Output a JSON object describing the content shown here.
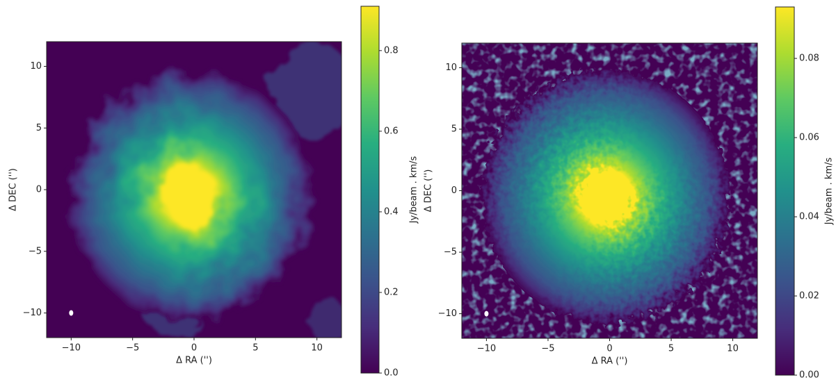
{
  "chart_data": [
    {
      "type": "image",
      "colormap": "viridis",
      "xlabel": "Δ RA ('')",
      "ylabel": "Δ DEC ('')",
      "xlim": [
        -12,
        12
      ],
      "ylim": [
        -12,
        12
      ],
      "xticks": [
        {
          "value": -10,
          "label": "−10"
        },
        {
          "value": -5,
          "label": "−5"
        },
        0,
        5,
        10
      ],
      "yticks": [
        {
          "value": -10,
          "label": "−10"
        },
        {
          "value": -5,
          "label": "−5"
        },
        0,
        5,
        10
      ],
      "beam": [
        -10,
        -10
      ],
      "colorbar": {
        "label": "Jy/beam . km/s",
        "lim": [
          0,
          0.91
        ],
        "ticks": [
          {
            "value": 0,
            "label": "0.0"
          },
          0.2,
          0.4,
          0.6,
          0.8
        ]
      }
    },
    {
      "type": "image",
      "colormap": "viridis",
      "xlabel": "Δ RA ('')",
      "ylabel": "Δ DEC ('')",
      "xlim": [
        -12,
        12
      ],
      "ylim": [
        -12,
        12
      ],
      "xticks": [
        {
          "value": -10,
          "label": "−10"
        },
        {
          "value": -5,
          "label": "−5"
        },
        0,
        5,
        10
      ],
      "yticks": [
        {
          "value": -10,
          "label": "−10"
        },
        {
          "value": -5,
          "label": "−5"
        },
        0,
        5,
        10
      ],
      "beam": [
        -10,
        -10
      ],
      "colorbar": {
        "label": "Jy/beam . km/s",
        "lim": [
          0,
          0.093
        ],
        "ticks": [
          {
            "value": 0,
            "label": "0.00"
          },
          0.02,
          0.04,
          0.06,
          0.08
        ]
      }
    }
  ]
}
